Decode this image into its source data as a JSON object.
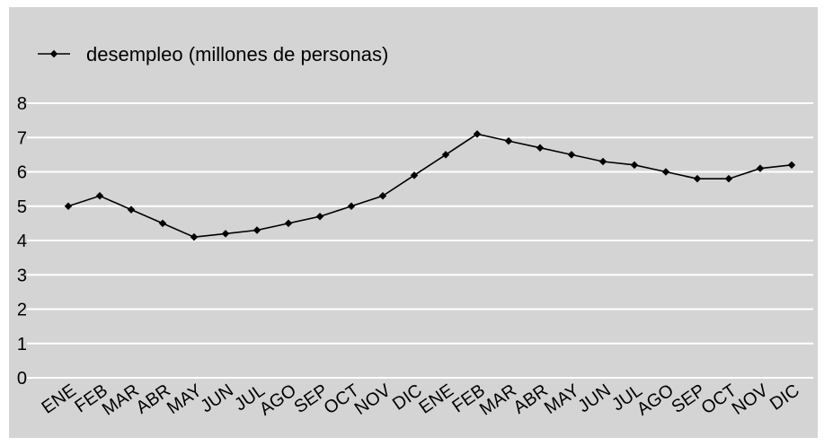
{
  "chart_data": {
    "type": "line",
    "title": "",
    "xlabel": "",
    "ylabel": "",
    "categories": [
      "ENE",
      "FEB",
      "MAR",
      "ABR",
      "MAY",
      "JUN",
      "JUL",
      "AGO",
      "SEP",
      "OCT",
      "NOV",
      "DIC",
      "ENE",
      "FEB",
      "MAR",
      "ABR",
      "MAY",
      "JUN",
      "JUL",
      "AGO",
      "SEP",
      "OCT",
      "NOV",
      "DIC"
    ],
    "series": [
      {
        "name": "desempleo (millones de personas)",
        "values": [
          5.0,
          5.3,
          4.9,
          4.5,
          4.1,
          4.2,
          4.3,
          4.5,
          4.7,
          5.0,
          5.3,
          5.9,
          6.5,
          7.1,
          6.9,
          6.7,
          6.5,
          6.3,
          6.2,
          6.0,
          5.8,
          5.8,
          6.1,
          6.2
        ]
      }
    ],
    "ylim": [
      0,
      8
    ],
    "yticks": [
      0,
      1,
      2,
      3,
      4,
      5,
      6,
      7,
      8
    ],
    "grid": true,
    "legend_position": "top-left",
    "colors": {
      "background": "#d4d4d4",
      "gridline": "#ffffff",
      "line": "#000000",
      "marker": "#000000"
    }
  }
}
